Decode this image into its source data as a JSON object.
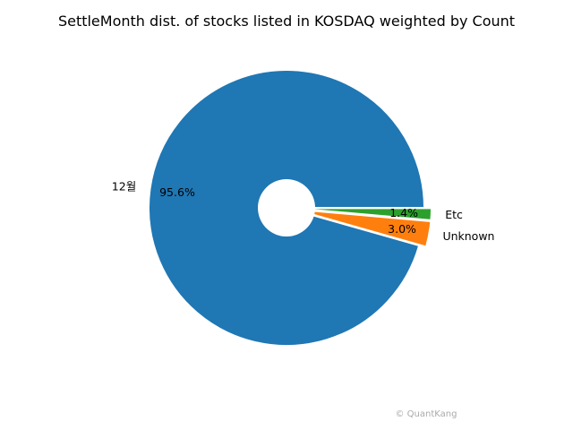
{
  "chart_data": {
    "type": "pie",
    "title": "SettleMonth dist. of stocks listed in KOSDAQ weighted by Count",
    "slices": [
      {
        "label": "12월",
        "value": 95.6,
        "pct_label": "95.6%",
        "color": "#1f77b4"
      },
      {
        "label": "Unknown",
        "value": 3.0,
        "pct_label": "3.0%",
        "color": "#ff7f0e"
      },
      {
        "label": "Etc",
        "value": 1.4,
        "pct_label": "1.4%",
        "color": "#2ca02c"
      }
    ]
  },
  "watermark": "© QuantKang"
}
